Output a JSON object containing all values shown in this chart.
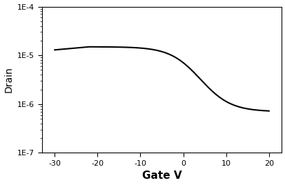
{
  "title": "",
  "xlabel": "Gate V",
  "ylabel": "Drain",
  "xlim": [
    -33,
    23
  ],
  "ylim": [
    1e-07,
    0.0001
  ],
  "xticks": [
    -30,
    -20,
    -10,
    0,
    10,
    20
  ],
  "ytick_vals": [
    1e-07,
    1e-06,
    1e-05,
    0.0001
  ],
  "ytick_labels": [
    "1E-7",
    "1E-6",
    "1E-5",
    "1E-4"
  ],
  "line_color": "#000000",
  "line_width": 1.5,
  "background_color": "#ffffff",
  "xlabel_fontsize": 11,
  "xlabel_fontweight": "bold",
  "ylabel_fontsize": 10,
  "tick_labelsize": 8,
  "figsize": [
    4.14,
    2.68
  ],
  "dpi": 100
}
